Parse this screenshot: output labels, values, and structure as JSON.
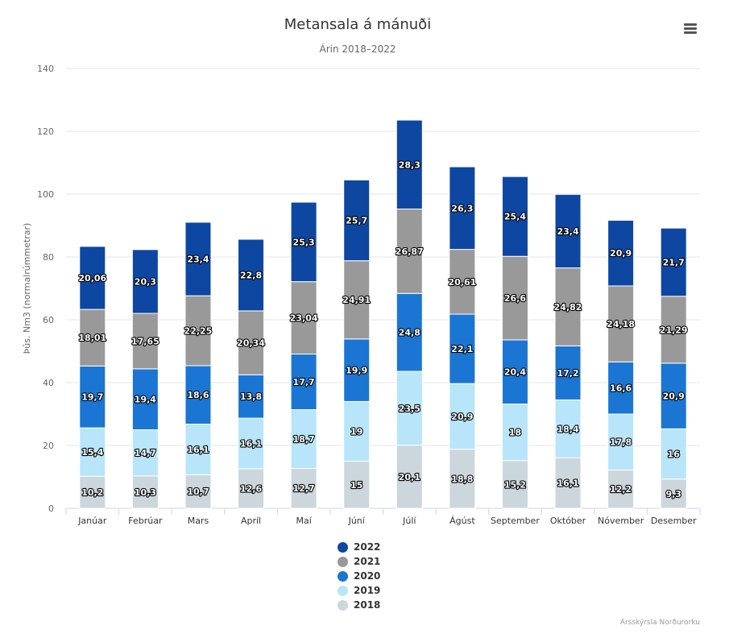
{
  "chart_data": {
    "type": "bar",
    "stacked": true,
    "title": "Metansala á mánuði",
    "subtitle": "Árin 2018–2022",
    "ylabel": "Þús. Nm3 (normalrúmmetrar)",
    "xlabel": "",
    "ylim": [
      0,
      140
    ],
    "yticks": [
      0,
      20,
      40,
      60,
      80,
      100,
      120,
      140
    ],
    "grid": true,
    "legend_position": "bottom",
    "categories": [
      "Janúar",
      "Febrúar",
      "Mars",
      "Apríl",
      "Maí",
      "Júní",
      "Júlí",
      "Ágúst",
      "September",
      "Október",
      "Nóvember",
      "Desember"
    ],
    "series": [
      {
        "name": "2018",
        "color": "#ccd6dd",
        "values": [
          10.2,
          10.3,
          10.7,
          12.6,
          12.7,
          15,
          20.1,
          18.8,
          15.2,
          16.1,
          12.2,
          9.3
        ],
        "labels": [
          "10,2",
          "10,3",
          "10,7",
          "12,6",
          "12,7",
          "15",
          "20,1",
          "18,8",
          "15,2",
          "16,1",
          "12,2",
          "9,3"
        ]
      },
      {
        "name": "2019",
        "color": "#b8e5fa",
        "values": [
          15.4,
          14.7,
          16.1,
          16.1,
          18.7,
          19,
          23.5,
          20.9,
          18,
          18.4,
          17.8,
          16
        ],
        "labels": [
          "15,4",
          "14,7",
          "16,1",
          "16,1",
          "18,7",
          "19",
          "23,5",
          "20,9",
          "18",
          "18,4",
          "17,8",
          "16"
        ]
      },
      {
        "name": "2020",
        "color": "#1a76d2",
        "values": [
          19.7,
          19.4,
          18.6,
          13.8,
          17.7,
          19.9,
          24.8,
          22.1,
          20.4,
          17.2,
          16.6,
          20.9
        ],
        "labels": [
          "19,7",
          "19,4",
          "18,6",
          "13,8",
          "17,7",
          "19,9",
          "24,8",
          "22,1",
          "20,4",
          "17,2",
          "16,6",
          "20,9"
        ]
      },
      {
        "name": "2021",
        "color": "#999999",
        "values": [
          18.01,
          17.65,
          22.25,
          20.34,
          23.04,
          24.91,
          26.87,
          20.61,
          26.6,
          24.82,
          24.18,
          21.29
        ],
        "labels": [
          "18,01",
          "17,65",
          "22,25",
          "20,34",
          "23,04",
          "24,91",
          "26,87",
          "20,61",
          "26,6",
          "24,82",
          "24,18",
          "21,29"
        ]
      },
      {
        "name": "2022",
        "color": "#0d47a1",
        "values": [
          20.06,
          20.3,
          23.4,
          22.8,
          25.3,
          25.7,
          28.3,
          26.3,
          25.4,
          23.4,
          20.9,
          21.7
        ],
        "labels": [
          "20,06",
          "20,3",
          "23,4",
          "22,8",
          "25,3",
          "25,7",
          "28,3",
          "26,3",
          "25,4",
          "23,4",
          "20,9",
          "21,7"
        ]
      }
    ],
    "legend_order": [
      "2022",
      "2021",
      "2020",
      "2019",
      "2018"
    ],
    "credits": "Ársskýrsla Norðurorku"
  },
  "ui": {
    "menu_icon": "hamburger-menu-icon"
  }
}
